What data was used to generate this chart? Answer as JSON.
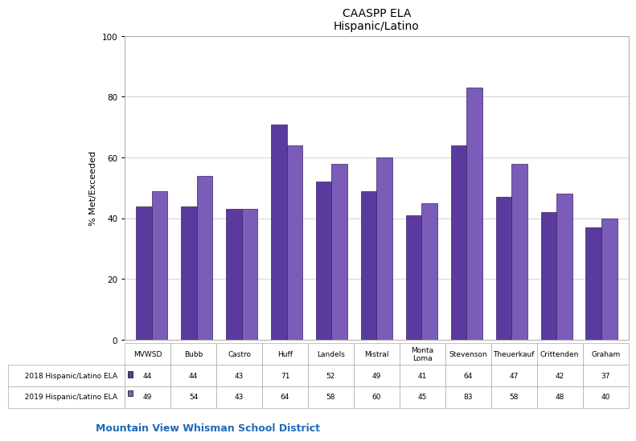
{
  "title_line1": "CAASPP ELA",
  "title_line2": "Hispanic/Latino",
  "categories": [
    "MVWSD",
    "Bubb",
    "Castro",
    "Huff",
    "Landels",
    "Mistral",
    "Monta\nLoma",
    "Stevenson",
    "Theuerkauf",
    "Crittenden",
    "Graham"
  ],
  "values_2018": [
    44,
    44,
    43,
    71,
    52,
    49,
    41,
    64,
    47,
    42,
    37
  ],
  "values_2019": [
    49,
    54,
    43,
    64,
    58,
    60,
    45,
    83,
    58,
    48,
    40
  ],
  "legend_2018": "2018 Hispanic/Latino ELA",
  "legend_2019": "2019 Hispanic/Latino ELA",
  "color_2018": "#5B3A9E",
  "color_2019": "#7B5CB8",
  "ylabel": "% Met/Exceeded",
  "ylim": [
    0,
    100
  ],
  "yticks": [
    0,
    20,
    40,
    60,
    80,
    100
  ],
  "bar_width": 0.35,
  "footer_text": "Mountain View Whisman School District",
  "footer_color": "#1E6BB8",
  "bg_color": "#FFFFFF",
  "chart_bg": "#FFFFFF",
  "grid_color": "#CCCCCC",
  "border_color": "#AAAAAA"
}
